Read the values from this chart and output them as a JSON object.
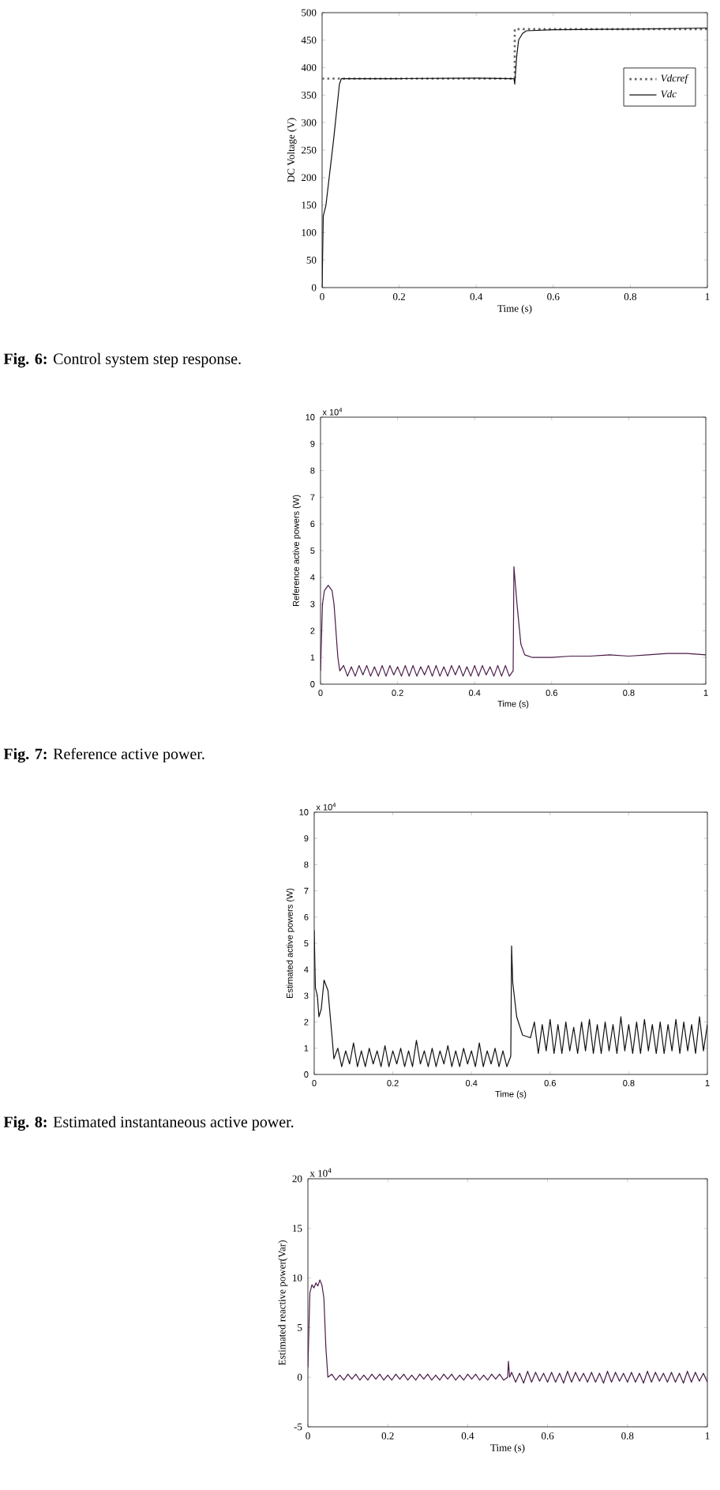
{
  "chart_data": [
    {
      "type": "line",
      "xlabel": "Time (s)",
      "ylabel": "DC Voltage (V)",
      "xlim": [
        0,
        1
      ],
      "ylim": [
        0,
        500
      ],
      "xticks": [
        0,
        0.2,
        0.4,
        0.6,
        0.8,
        1
      ],
      "yticks": [
        0,
        50,
        100,
        150,
        200,
        250,
        300,
        350,
        400,
        450,
        500
      ],
      "legend": "top right",
      "annotations": [
        "**Fig. 6:** Control system step response."
      ],
      "series": [
        {
          "name": "Vdcref",
          "color": "#666666",
          "line_style": "dotted",
          "x": [
            0,
            0.5,
            0.5,
            1
          ],
          "values": [
            380,
            380,
            470,
            470
          ]
        },
        {
          "name": "Vdc",
          "color": "#111111",
          "line_style": "solid",
          "x": [
            0,
            0.003,
            0.01,
            0.02,
            0.03,
            0.045,
            0.05,
            0.2,
            0.4,
            0.498,
            0.5,
            0.505,
            0.51,
            0.52,
            0.53,
            0.6,
            0.8,
            1
          ],
          "values": [
            0,
            130,
            150,
            210,
            270,
            370,
            380,
            380,
            381,
            380,
            370,
            420,
            450,
            462,
            467,
            469,
            470,
            472
          ]
        }
      ]
    },
    {
      "type": "line",
      "xlabel": "Time (s)",
      "ylabel": "Reference active powers (W)",
      "xlim": [
        0,
        1
      ],
      "ylim": [
        0,
        10
      ],
      "xticks": [
        0,
        0.2,
        0.4,
        0.6,
        0.8,
        1
      ],
      "yticks": [
        0,
        1,
        2,
        3,
        4,
        5,
        6,
        7,
        8,
        9,
        10
      ],
      "annotations": [
        "**Fig. 7:** Reference active power.",
        "x 10$^{4}$"
      ],
      "series": [
        {
          "color": "#4a1a48",
          "x": [
            0,
            0.005,
            0.01,
            0.02,
            0.03,
            0.035,
            0.04,
            0.045,
            0.05,
            0.06,
            0.07,
            0.08,
            0.09,
            0.1,
            0.11,
            0.12,
            0.13,
            0.14,
            0.15,
            0.16,
            0.17,
            0.18,
            0.19,
            0.2,
            0.21,
            0.22,
            0.23,
            0.24,
            0.25,
            0.26,
            0.27,
            0.28,
            0.29,
            0.3,
            0.31,
            0.32,
            0.33,
            0.34,
            0.35,
            0.36,
            0.37,
            0.38,
            0.39,
            0.4,
            0.41,
            0.42,
            0.43,
            0.44,
            0.45,
            0.46,
            0.47,
            0.48,
            0.49,
            0.5,
            0.502,
            0.51,
            0.52,
            0.53,
            0.55,
            0.6,
            0.65,
            0.7,
            0.75,
            0.8,
            0.85,
            0.9,
            0.95,
            1
          ],
          "values": [
            0.5,
            3,
            3.5,
            3.7,
            3.5,
            3,
            2,
            1,
            0.5,
            0.7,
            0.3,
            0.65,
            0.3,
            0.7,
            0.35,
            0.7,
            0.3,
            0.65,
            0.3,
            0.7,
            0.3,
            0.7,
            0.35,
            0.65,
            0.3,
            0.7,
            0.3,
            0.7,
            0.3,
            0.65,
            0.35,
            0.7,
            0.3,
            0.7,
            0.3,
            0.65,
            0.3,
            0.7,
            0.35,
            0.7,
            0.3,
            0.65,
            0.3,
            0.7,
            0.3,
            0.7,
            0.35,
            0.65,
            0.3,
            0.7,
            0.3,
            0.7,
            0.3,
            0.5,
            4.4,
            3,
            1.5,
            1.1,
            1,
            1,
            1.05,
            1.05,
            1.1,
            1.05,
            1.1,
            1.15,
            1.15,
            1.1
          ]
        }
      ]
    },
    {
      "type": "line",
      "xlabel": "Time (s)",
      "ylabel": "Estimated active powers (W)",
      "xlim": [
        0,
        1
      ],
      "ylim": [
        0,
        10
      ],
      "xticks": [
        0,
        0.2,
        0.4,
        0.6,
        0.8,
        1
      ],
      "yticks": [
        0,
        1,
        2,
        3,
        4,
        5,
        6,
        7,
        8,
        9,
        10
      ],
      "annotations": [
        "**Fig. 8:** Estimated instantaneous active power.",
        "x 10$^{4}$"
      ],
      "series": [
        {
          "color": "#111111",
          "x": [
            0,
            0.003,
            0.008,
            0.012,
            0.018,
            0.025,
            0.035,
            0.045,
            0.05,
            0.06,
            0.07,
            0.08,
            0.09,
            0.1,
            0.11,
            0.12,
            0.13,
            0.14,
            0.15,
            0.16,
            0.17,
            0.18,
            0.19,
            0.2,
            0.21,
            0.22,
            0.23,
            0.24,
            0.25,
            0.26,
            0.27,
            0.28,
            0.29,
            0.3,
            0.31,
            0.32,
            0.33,
            0.34,
            0.35,
            0.36,
            0.37,
            0.38,
            0.39,
            0.4,
            0.41,
            0.42,
            0.43,
            0.44,
            0.45,
            0.46,
            0.47,
            0.48,
            0.49,
            0.5,
            0.502,
            0.505,
            0.515,
            0.53,
            0.55,
            0.56,
            0.57,
            0.58,
            0.59,
            0.6,
            0.61,
            0.62,
            0.63,
            0.64,
            0.65,
            0.66,
            0.67,
            0.68,
            0.69,
            0.7,
            0.71,
            0.72,
            0.73,
            0.74,
            0.75,
            0.76,
            0.77,
            0.78,
            0.79,
            0.8,
            0.81,
            0.82,
            0.83,
            0.84,
            0.85,
            0.86,
            0.87,
            0.88,
            0.89,
            0.9,
            0.91,
            0.92,
            0.93,
            0.94,
            0.95,
            0.96,
            0.97,
            0.98,
            0.99,
            1
          ],
          "values": [
            5.5,
            3.3,
            3,
            2.2,
            2.5,
            3.6,
            3.2,
            1.5,
            0.6,
            1,
            0.3,
            0.9,
            0.4,
            1.2,
            0.3,
            0.9,
            0.3,
            1,
            0.4,
            0.9,
            0.3,
            1.1,
            0.3,
            0.9,
            0.4,
            1,
            0.3,
            0.9,
            0.3,
            1.3,
            0.4,
            0.9,
            0.3,
            1,
            0.3,
            0.9,
            0.4,
            1.1,
            0.3,
            0.9,
            0.3,
            1,
            0.4,
            0.9,
            0.3,
            1.2,
            0.3,
            0.9,
            0.4,
            1,
            0.3,
            0.9,
            0.3,
            0.7,
            4.9,
            3.5,
            2.2,
            1.5,
            1.4,
            2,
            0.8,
            1.9,
            0.9,
            2.1,
            0.8,
            1.9,
            0.8,
            2,
            0.9,
            1.8,
            0.8,
            2,
            0.9,
            2.1,
            0.8,
            1.9,
            0.8,
            2,
            0.9,
            1.9,
            0.8,
            2.2,
            0.9,
            1.9,
            0.8,
            2,
            0.8,
            2.1,
            0.9,
            1.9,
            0.8,
            2,
            0.8,
            1.9,
            0.9,
            2.1,
            0.8,
            2,
            0.9,
            1.9,
            0.8,
            2.2,
            0.9,
            1.9
          ]
        }
      ]
    },
    {
      "type": "line",
      "xlabel": "Time (s)",
      "ylabel": "Estimated reactive power(Var)",
      "xlim": [
        0,
        1
      ],
      "ylim": [
        -5,
        20
      ],
      "xticks": [
        0,
        0.2,
        0.4,
        0.6,
        0.8,
        1
      ],
      "yticks": [
        -5,
        0,
        5,
        10,
        15,
        20
      ],
      "annotations": [
        "x 10$^{4}$"
      ],
      "series": [
        {
          "color": "#4a1a48",
          "x": [
            0,
            0.005,
            0.01,
            0.015,
            0.02,
            0.025,
            0.03,
            0.035,
            0.04,
            0.045,
            0.05,
            0.06,
            0.07,
            0.08,
            0.09,
            0.1,
            0.11,
            0.12,
            0.13,
            0.14,
            0.15,
            0.16,
            0.17,
            0.18,
            0.19,
            0.2,
            0.21,
            0.22,
            0.23,
            0.24,
            0.25,
            0.26,
            0.27,
            0.28,
            0.29,
            0.3,
            0.31,
            0.32,
            0.33,
            0.34,
            0.35,
            0.36,
            0.37,
            0.38,
            0.39,
            0.4,
            0.41,
            0.42,
            0.43,
            0.44,
            0.45,
            0.46,
            0.47,
            0.48,
            0.49,
            0.5,
            0.502,
            0.505,
            0.51,
            0.52,
            0.53,
            0.54,
            0.55,
            0.56,
            0.57,
            0.58,
            0.59,
            0.6,
            0.61,
            0.62,
            0.63,
            0.64,
            0.65,
            0.66,
            0.67,
            0.68,
            0.69,
            0.7,
            0.71,
            0.72,
            0.73,
            0.74,
            0.75,
            0.76,
            0.77,
            0.78,
            0.79,
            0.8,
            0.81,
            0.82,
            0.83,
            0.84,
            0.85,
            0.86,
            0.87,
            0.88,
            0.89,
            0.9,
            0.91,
            0.92,
            0.93,
            0.94,
            0.95,
            0.96,
            0.97,
            0.98,
            0.99,
            1
          ],
          "values": [
            1,
            8.5,
            9.3,
            9,
            9.5,
            9.2,
            9.8,
            9.3,
            8,
            3,
            0,
            0.3,
            -0.3,
            0.2,
            -0.3,
            0.3,
            -0.2,
            0.3,
            -0.3,
            0.2,
            -0.3,
            0.3,
            -0.2,
            0.3,
            -0.3,
            0.2,
            -0.3,
            0.3,
            -0.2,
            0.3,
            -0.3,
            0.2,
            -0.3,
            0.3,
            -0.2,
            0.3,
            -0.3,
            0.2,
            -0.3,
            0.3,
            -0.2,
            0.3,
            -0.3,
            0.2,
            -0.3,
            0.3,
            -0.2,
            0.3,
            -0.3,
            0.2,
            -0.3,
            0.3,
            -0.2,
            0.3,
            -0.3,
            0,
            1.6,
            0,
            0.5,
            -0.5,
            0.4,
            -0.6,
            0.6,
            -0.5,
            0.5,
            -0.4,
            0.4,
            -0.5,
            0.5,
            -0.5,
            0.4,
            -0.6,
            0.6,
            -0.5,
            0.5,
            -0.4,
            0.4,
            -0.5,
            0.5,
            -0.5,
            0.4,
            -0.6,
            0.6,
            -0.5,
            0.5,
            -0.4,
            0.4,
            -0.5,
            0.5,
            -0.5,
            0.4,
            -0.6,
            0.6,
            -0.5,
            0.5,
            -0.4,
            0.4,
            -0.5,
            0.5,
            -0.5,
            0.4,
            -0.6,
            0.6,
            -0.5,
            0.5,
            -0.4,
            0.4,
            -0.5
          ]
        }
      ]
    }
  ]
}
